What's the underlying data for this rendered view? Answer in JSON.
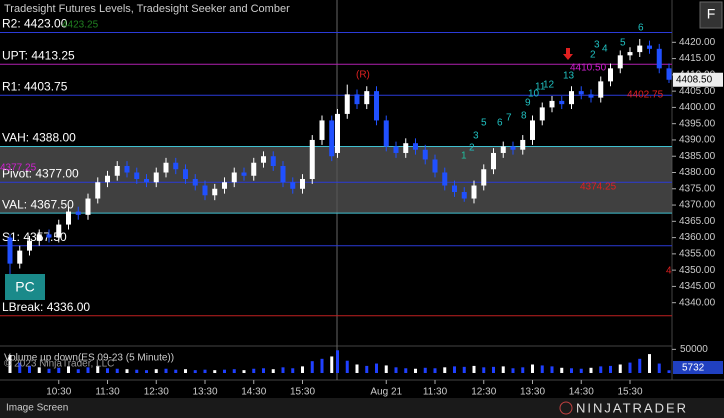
{
  "chart_data": {
    "type": "candlestick",
    "title": "Tradesight Futures Levels, Tradesight Seeker and Comber",
    "ylim": [
      4327,
      4433
    ],
    "yticks": [
      {
        "value": 4340,
        "label": "4340.00"
      },
      {
        "value": 4345,
        "label": "4345.00"
      },
      {
        "value": 4350,
        "label": "4350.00"
      },
      {
        "value": 4355,
        "label": "4355.00"
      },
      {
        "value": 4360,
        "label": "4360.00"
      },
      {
        "value": 4365,
        "label": "4365.00"
      },
      {
        "value": 4370,
        "label": "4370.00"
      },
      {
        "value": 4375,
        "label": "4375.00"
      },
      {
        "value": 4380,
        "label": "4380.00"
      },
      {
        "value": 4385,
        "label": "4385.00"
      },
      {
        "value": 4390,
        "label": "4390.00"
      },
      {
        "value": 4395,
        "label": "4395.00"
      },
      {
        "value": 4400,
        "label": "4400.00"
      },
      {
        "value": 4405,
        "label": "4405.00"
      },
      {
        "value": 4410,
        "label": "4410.00"
      },
      {
        "value": 4415,
        "label": "4415.00"
      },
      {
        "value": 4420,
        "label": "4420.00"
      }
    ],
    "up_color": "#ffffff",
    "down_color": "#2050ff",
    "categories": [
      null,
      null,
      null,
      null,
      null,
      "10:30",
      null,
      null,
      null,
      null,
      "11:30",
      null,
      null,
      null,
      null,
      "12:30",
      null,
      null,
      null,
      null,
      "13:30",
      null,
      null,
      null,
      null,
      "14:30",
      null,
      null,
      null,
      null,
      "15:30",
      null,
      null,
      null,
      null,
      null,
      null,
      null,
      null,
      "Aug 21",
      null,
      null,
      null,
      null,
      "11:30",
      null,
      null,
      null,
      null,
      "12:30",
      null,
      null,
      null,
      null,
      "13:30",
      null,
      null,
      null,
      null,
      "14:30",
      null,
      null,
      null,
      null,
      "15:30",
      null,
      null,
      null,
      null
    ],
    "ohlc": [
      [
        4360,
        4361,
        4344,
        4352
      ],
      [
        4352,
        4357.5,
        4350.5,
        4356
      ],
      [
        4356,
        4360.5,
        4354.5,
        4359
      ],
      [
        4359,
        4362.5,
        4357.5,
        4361
      ],
      [
        4361,
        4362.5,
        4358.5,
        4360
      ],
      [
        4360,
        4365.5,
        4358.5,
        4364
      ],
      [
        4364,
        4369.5,
        4362.5,
        4368
      ],
      [
        4368,
        4369.5,
        4365.5,
        4367
      ],
      [
        4367,
        4373.5,
        4365.5,
        4372
      ],
      [
        4372,
        4378.5,
        4370.5,
        4377
      ],
      [
        4377,
        4380.5,
        4375.5,
        4379
      ],
      [
        4379,
        4383.5,
        4377.5,
        4382
      ],
      [
        4382,
        4383.5,
        4378.5,
        4380
      ],
      [
        4380,
        4381.5,
        4376.5,
        4378
      ],
      [
        4378,
        4379.5,
        4375.5,
        4377
      ],
      [
        4377,
        4381.5,
        4375.5,
        4380
      ],
      [
        4380,
        4384.5,
        4378.5,
        4383
      ],
      [
        4383,
        4384.5,
        4379.5,
        4381
      ],
      [
        4381,
        4382.5,
        4376.5,
        4378
      ],
      [
        4378,
        4379.5,
        4374.5,
        4376
      ],
      [
        4376,
        4377.5,
        4371.5,
        4373
      ],
      [
        4373,
        4376.5,
        4371.5,
        4375
      ],
      [
        4375,
        4378.5,
        4373.5,
        4377
      ],
      [
        4377,
        4381.5,
        4375.5,
        4380
      ],
      [
        4380,
        4381.5,
        4377.5,
        4379
      ],
      [
        4379,
        4384.5,
        4377.5,
        4383
      ],
      [
        4383,
        4386.5,
        4381.5,
        4385
      ],
      [
        4385,
        4386.5,
        4380.5,
        4382
      ],
      [
        4382,
        4383.5,
        4375.5,
        4377
      ],
      [
        4377,
        4378.5,
        4373.5,
        4375
      ],
      [
        4375,
        4379.5,
        4373.5,
        4378
      ],
      [
        4378,
        4391.5,
        4376.5,
        4390
      ],
      [
        4390,
        4397.5,
        4388.5,
        4396
      ],
      [
        4396,
        4397.5,
        4383.5,
        4385
      ],
      [
        4386,
        4399.5,
        4384.5,
        4398
      ],
      [
        4398,
        4407,
        4396.5,
        4404
      ],
      [
        4404,
        4405.5,
        4399.5,
        4401
      ],
      [
        4401,
        4406.5,
        4399.5,
        4405
      ],
      [
        4405,
        4406.5,
        4394.5,
        4396
      ],
      [
        4396,
        4397.5,
        4386.5,
        4388
      ],
      [
        4388,
        4389.5,
        4384.5,
        4386
      ],
      [
        4386,
        4390.5,
        4384.5,
        4389
      ],
      [
        4389,
        4390.5,
        4385.5,
        4387
      ],
      [
        4387,
        4388.5,
        4382.5,
        4384
      ],
      [
        4384,
        4385.5,
        4378.5,
        4380
      ],
      [
        4380,
        4381.5,
        4374.5,
        4376
      ],
      [
        4376,
        4377.5,
        4372.5,
        4374
      ],
      [
        4374,
        4375.5,
        4371,
        4372
      ],
      [
        4372,
        4377.5,
        4370.5,
        4376
      ],
      [
        4376,
        4382.5,
        4374.5,
        4381
      ],
      [
        4381,
        4387.5,
        4379.5,
        4386
      ],
      [
        4386,
        4389.5,
        4384.5,
        4388
      ],
      [
        4388,
        4389.5,
        4385.5,
        4387
      ],
      [
        4387,
        4391.5,
        4385.5,
        4390
      ],
      [
        4390,
        4397.5,
        4388.5,
        4396
      ],
      [
        4396,
        4401.5,
        4394.5,
        4400
      ],
      [
        4400,
        4403.5,
        4398.5,
        4402
      ],
      [
        4402,
        4403.5,
        4399.5,
        4401
      ],
      [
        4401,
        4406.5,
        4399.5,
        4405
      ],
      [
        4405,
        4406.5,
        4402.5,
        4404
      ],
      [
        4404,
        4405.5,
        4401.5,
        4403
      ],
      [
        4403,
        4409.5,
        4401.5,
        4408
      ],
      [
        4408,
        4413.5,
        4406.5,
        4412
      ],
      [
        4412,
        4417.5,
        4410.5,
        4416
      ],
      [
        4416,
        4418.5,
        4414.5,
        4417
      ],
      [
        4417,
        4421,
        4415.5,
        4419
      ],
      [
        4419,
        4420.5,
        4416.5,
        4418
      ],
      [
        4418,
        4419.5,
        4410.5,
        4412
      ],
      [
        4412,
        4413.5,
        4407.5,
        4408.5
      ]
    ],
    "last_price": 4408.5,
    "last_price_label": "4408.50",
    "levels": [
      {
        "label": "R2: 4423.00",
        "value": 4423,
        "color": "#2b3bd8"
      },
      {
        "label": "UPT: 4413.25",
        "value": 4413.25,
        "color": "#b020b0"
      },
      {
        "label": "R1: 4403.75",
        "value": 4403.75,
        "color": "#2b3bd8"
      },
      {
        "label": "VAH: 4388.00",
        "value": 4388,
        "color": "#40c0d0"
      },
      {
        "label": "Pivot: 4377.00",
        "value": 4377,
        "color": "#2b3bd8"
      },
      {
        "label": "VAL: 4367.50",
        "value": 4367.5,
        "color": "#40c0d0"
      },
      {
        "label": "S1: 4357.50",
        "value": 4357.5,
        "color": "#2b3bd8"
      },
      {
        "label": "LBreak: 4336.00",
        "value": 4336,
        "color": "#c02020"
      }
    ],
    "value_area_color": "#555555",
    "annotations": [
      {
        "text": "(R)",
        "color": "#e02020"
      },
      {
        "text": "4410.50",
        "color": "#d020d0"
      },
      {
        "text": "4402.75",
        "color": "#e02020"
      },
      {
        "text": "4374.25",
        "color": "#e02020"
      },
      {
        "text": "4",
        "color": "#e02020"
      },
      {
        "text": "1",
        "color": "#20c0a0"
      },
      {
        "text": "2",
        "color": "#20c0c0"
      },
      {
        "text": "3",
        "color": "#20c0c0"
      },
      {
        "text": "5",
        "color": "#20c0c0"
      },
      {
        "text": "6",
        "color": "#20c0c0"
      },
      {
        "text": "7",
        "color": "#20c0c0"
      },
      {
        "text": "8",
        "color": "#20c0c0"
      },
      {
        "text": "9",
        "color": "#20c0c0"
      },
      {
        "text": "10",
        "color": "#20c0c0"
      },
      {
        "text": "11",
        "color": "#20c0c0"
      },
      {
        "text": "12",
        "color": "#20c0c0"
      },
      {
        "text": "13",
        "color": "#20c0c0"
      },
      {
        "text": "2",
        "color": "#20c0c0"
      },
      {
        "text": "3",
        "color": "#20c0c0"
      },
      {
        "text": "4",
        "color": "#20c0c0"
      },
      {
        "text": "5",
        "color": "#20c0c0"
      },
      {
        "text": "6",
        "color": "#20c0c0"
      },
      {
        "text": "4377.25",
        "color": "#d020d0"
      },
      {
        "text": "4423.25",
        "color": "#208020"
      }
    ],
    "volume": {
      "title": "Volume up down(ES 09-23 (5 Minute))",
      "color": "#2040ff",
      "ylim": [
        0,
        55000
      ],
      "yticks": [
        50000
      ],
      "values": [
        38000,
        22000,
        15000,
        12000,
        9000,
        11000,
        14000,
        8000,
        12000,
        15000,
        10000,
        9000,
        8000,
        7000,
        6000,
        8000,
        9000,
        7000,
        8000,
        6000,
        7000,
        6000,
        7000,
        8000,
        6000,
        9000,
        10000,
        8000,
        12000,
        10000,
        14000,
        25000,
        30000,
        35000,
        48000,
        26000,
        18000,
        15000,
        20000,
        16000,
        12000,
        10000,
        9000,
        11000,
        10000,
        12000,
        14000,
        13000,
        15000,
        12000,
        13000,
        14000,
        10000,
        12000,
        18000,
        16000,
        14000,
        11000,
        10000,
        9000,
        11000,
        14000,
        15000,
        18000,
        22000,
        30000,
        40000,
        20000,
        5732
      ]
    },
    "copyright": "© 2023 NinjaTrader, LLC",
    "buttons": {
      "pc": "PC",
      "f": "F"
    },
    "status": "Image Screen",
    "logo": "NINJATRADER"
  }
}
